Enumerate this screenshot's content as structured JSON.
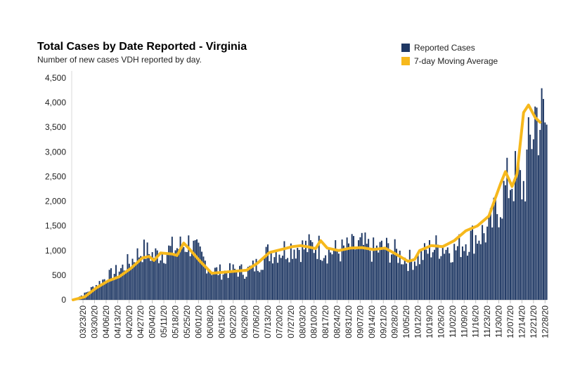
{
  "chart_data": {
    "type": "bar",
    "title": "Total Cases by Date Reported - Virginia",
    "subtitle": "Number of new cases VDH reported by day.",
    "xlabel": "",
    "ylabel": "",
    "ylim": [
      0,
      4500
    ],
    "yticks": [
      0,
      500,
      1000,
      1500,
      2000,
      2500,
      3000,
      3500,
      4000,
      4500
    ],
    "ytick_labels": [
      "0",
      "500",
      "1,000",
      "1,500",
      "2,000",
      "2,500",
      "3,000",
      "3,500",
      "4,000",
      "4,500"
    ],
    "x_start": "03/17/20",
    "x_tick_labels": [
      "03/23/20",
      "03/30/20",
      "04/06/20",
      "04/13/20",
      "04/20/20",
      "04/27/20",
      "05/04/20",
      "05/11/20",
      "05/18/20",
      "05/25/20",
      "06/01/20",
      "06/08/20",
      "06/15/20",
      "06/22/20",
      "06/29/20",
      "07/06/20",
      "07/13/20",
      "07/20/20",
      "07/27/20",
      "08/03/20",
      "08/10/20",
      "08/17/20",
      "08/24/20",
      "08/31/20",
      "09/07/20",
      "09/14/20",
      "09/21/20",
      "09/28/20",
      "10/05/20",
      "10/12/20",
      "10/19/20",
      "10/26/20",
      "11/02/20",
      "11/09/20",
      "11/16/20",
      "11/23/20",
      "11/30/20",
      "12/07/20",
      "12/14/20",
      "12/21/20",
      "12/28/20"
    ],
    "legend_position": "top-right",
    "series": [
      {
        "name": "Reported Cases",
        "color": "#1f3864",
        "kind": "bar",
        "weekly_points": [
          [
            0,
            5
          ],
          [
            7,
            120
          ],
          [
            14,
            300
          ],
          [
            21,
            470
          ],
          [
            28,
            600
          ],
          [
            35,
            780
          ],
          [
            42,
            1000
          ],
          [
            49,
            900
          ],
          [
            56,
            980
          ],
          [
            63,
            1050
          ],
          [
            70,
            1150
          ],
          [
            77,
            900
          ],
          [
            84,
            600
          ],
          [
            91,
            560
          ],
          [
            98,
            600
          ],
          [
            105,
            580
          ],
          [
            112,
            720
          ],
          [
            119,
            980
          ],
          [
            126,
            1000
          ],
          [
            133,
            1080
          ],
          [
            140,
            1050
          ],
          [
            147,
            1100
          ],
          [
            154,
            1000
          ],
          [
            161,
            980
          ],
          [
            168,
            1050
          ],
          [
            175,
            1100
          ],
          [
            182,
            1000
          ],
          [
            189,
            1050
          ],
          [
            196,
            950
          ],
          [
            203,
            800
          ],
          [
            210,
            850
          ],
          [
            217,
            1050
          ],
          [
            224,
            1100
          ],
          [
            231,
            1000
          ],
          [
            238,
            1200
          ],
          [
            245,
            1300
          ],
          [
            252,
            1400
          ],
          [
            259,
            2000
          ],
          [
            266,
            2500
          ],
          [
            273,
            2300
          ],
          [
            280,
            3800
          ],
          [
            287,
            3500
          ]
        ]
      },
      {
        "name": "7-day Moving Average",
        "color": "#f6b81c",
        "kind": "line",
        "points": [
          [
            0,
            0
          ],
          [
            7,
            60
          ],
          [
            14,
            240
          ],
          [
            21,
            380
          ],
          [
            28,
            470
          ],
          [
            35,
            640
          ],
          [
            42,
            850
          ],
          [
            46,
            880
          ],
          [
            49,
            800
          ],
          [
            53,
            950
          ],
          [
            60,
            930
          ],
          [
            63,
            900
          ],
          [
            67,
            1150
          ],
          [
            70,
            1050
          ],
          [
            77,
            780
          ],
          [
            84,
            540
          ],
          [
            91,
            560
          ],
          [
            98,
            580
          ],
          [
            105,
            600
          ],
          [
            112,
            750
          ],
          [
            119,
            960
          ],
          [
            126,
            1020
          ],
          [
            133,
            1080
          ],
          [
            138,
            1100
          ],
          [
            143,
            1070
          ],
          [
            147,
            1040
          ],
          [
            150,
            1200
          ],
          [
            154,
            1050
          ],
          [
            161,
            1000
          ],
          [
            168,
            1050
          ],
          [
            175,
            1060
          ],
          [
            182,
            1020
          ],
          [
            189,
            1050
          ],
          [
            196,
            920
          ],
          [
            203,
            780
          ],
          [
            207,
            820
          ],
          [
            210,
            1000
          ],
          [
            217,
            1100
          ],
          [
            224,
            1080
          ],
          [
            231,
            1200
          ],
          [
            238,
            1400
          ],
          [
            245,
            1500
          ],
          [
            252,
            1700
          ],
          [
            259,
            2350
          ],
          [
            262,
            2600
          ],
          [
            266,
            2300
          ],
          [
            269,
            2550
          ],
          [
            273,
            3800
          ],
          [
            276,
            3950
          ],
          [
            280,
            3700
          ],
          [
            283,
            3600
          ]
        ]
      }
    ]
  }
}
